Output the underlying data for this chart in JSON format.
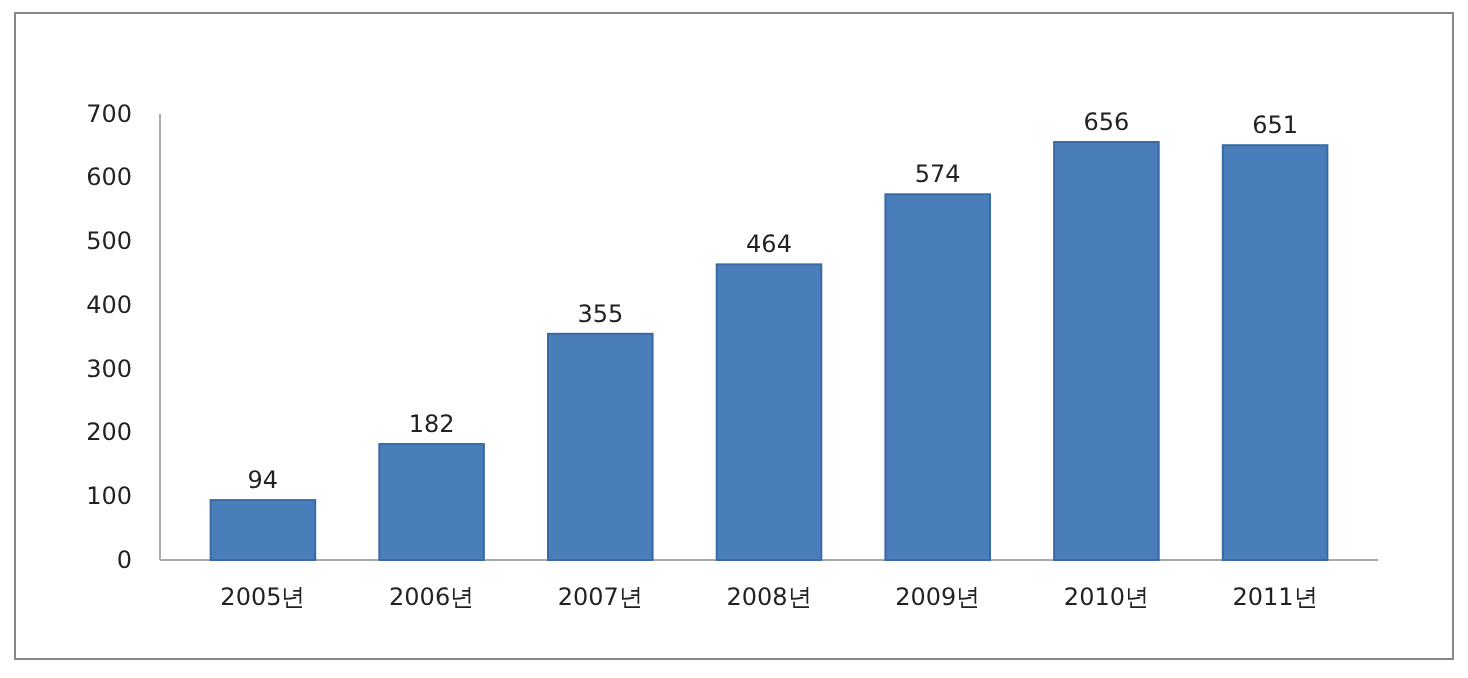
{
  "chart_data": {
    "type": "bar",
    "categories": [
      "2005년",
      "2006년",
      "2007년",
      "2008년",
      "2009년",
      "2010년",
      "2011년"
    ],
    "values": [
      94,
      182,
      355,
      464,
      574,
      656,
      651
    ],
    "color": "#4a7ebb",
    "ylim": [
      0,
      700
    ],
    "yticks": [
      0,
      100,
      200,
      300,
      400,
      500,
      600,
      700
    ],
    "data_labels": true,
    "grid": false
  }
}
